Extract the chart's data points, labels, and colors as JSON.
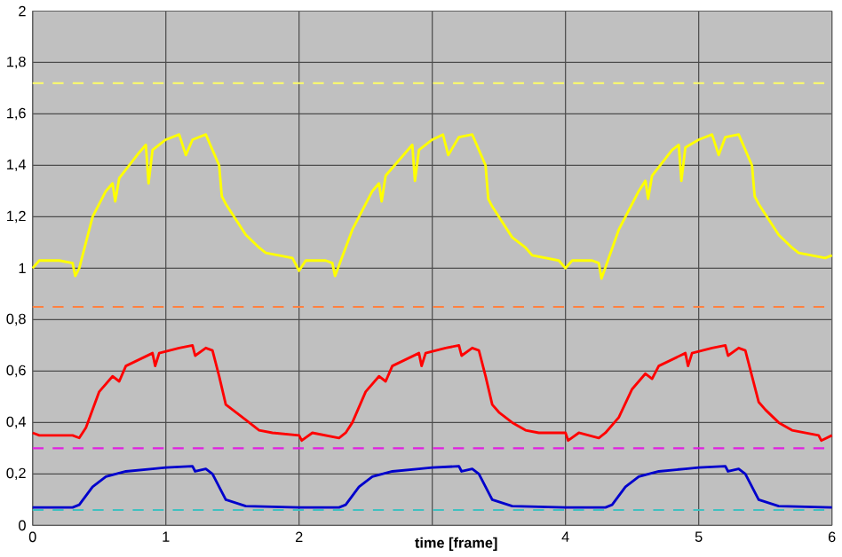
{
  "chart_data": {
    "type": "line",
    "xlabel": "time [frame]",
    "xlim": [
      0,
      6
    ],
    "ylim": [
      0,
      2
    ],
    "xticks": [
      0,
      1,
      2,
      {
        "value": 3,
        "label": null
      },
      4,
      5,
      6
    ],
    "yticks": [
      0,
      {
        "value": 0.2,
        "label": "0,2"
      },
      {
        "value": 0.4,
        "label": "0,4"
      },
      {
        "value": 0.6,
        "label": "0,6"
      },
      {
        "value": 0.8,
        "label": "0,8"
      },
      1,
      {
        "value": 1.2,
        "label": "1,2"
      },
      {
        "value": 1.4,
        "label": "1,4"
      },
      {
        "value": 1.6,
        "label": "1,6"
      },
      {
        "value": 1.8,
        "label": "1,8"
      },
      2
    ],
    "grid": true,
    "marker": "none",
    "line_style": "solid",
    "series": [
      {
        "color": "#ffff00",
        "x": [
          0,
          0.05,
          0.2,
          0.3,
          0.32,
          0.35,
          0.45,
          0.55,
          0.6,
          0.62,
          0.65,
          0.8,
          0.85,
          0.87,
          0.9,
          1.0,
          1.1,
          1.15,
          1.2,
          1.3,
          1.4,
          1.42,
          1.45,
          1.6,
          1.7,
          1.75,
          1.95,
          2.0,
          2.05,
          2.2,
          2.25,
          2.27,
          2.4,
          2.55,
          2.6,
          2.62,
          2.65,
          2.8,
          2.85,
          2.87,
          2.9,
          3.0,
          3.08,
          3.12,
          3.2,
          3.3,
          3.4,
          3.42,
          3.45,
          3.6,
          3.7,
          3.75,
          3.95,
          4.0,
          4.05,
          4.2,
          4.25,
          4.27,
          4.4,
          4.55,
          4.6,
          4.62,
          4.65,
          4.8,
          4.85,
          4.87,
          4.9,
          5.0,
          5.1,
          5.15,
          5.2,
          5.3,
          5.4,
          5.42,
          5.45,
          5.6,
          5.7,
          5.75,
          5.95,
          6.0
        ],
        "values": [
          1.0,
          1.03,
          1.03,
          1.02,
          0.97,
          1.0,
          1.2,
          1.3,
          1.33,
          1.26,
          1.35,
          1.45,
          1.48,
          1.33,
          1.46,
          1.5,
          1.52,
          1.44,
          1.5,
          1.52,
          1.4,
          1.28,
          1.25,
          1.13,
          1.08,
          1.06,
          1.04,
          0.99,
          1.03,
          1.03,
          1.02,
          0.97,
          1.15,
          1.3,
          1.33,
          1.26,
          1.36,
          1.45,
          1.48,
          1.34,
          1.46,
          1.5,
          1.52,
          1.44,
          1.51,
          1.52,
          1.4,
          1.27,
          1.24,
          1.12,
          1.08,
          1.05,
          1.03,
          1.0,
          1.03,
          1.03,
          1.02,
          0.96,
          1.15,
          1.3,
          1.34,
          1.27,
          1.36,
          1.46,
          1.48,
          1.34,
          1.47,
          1.5,
          1.52,
          1.44,
          1.51,
          1.52,
          1.4,
          1.28,
          1.25,
          1.13,
          1.08,
          1.06,
          1.04,
          1.05
        ]
      },
      {
        "color": "#ff0000",
        "x": [
          0,
          0.05,
          0.1,
          0.3,
          0.35,
          0.4,
          0.5,
          0.6,
          0.65,
          0.7,
          0.9,
          0.92,
          0.95,
          1.1,
          1.2,
          1.22,
          1.3,
          1.35,
          1.4,
          1.45,
          1.5,
          1.6,
          1.7,
          1.8,
          2.0,
          2.02,
          2.1,
          2.3,
          2.35,
          2.4,
          2.5,
          2.6,
          2.65,
          2.7,
          2.9,
          2.92,
          2.95,
          3.1,
          3.2,
          3.22,
          3.3,
          3.35,
          3.4,
          3.45,
          3.5,
          3.6,
          3.7,
          3.8,
          4.0,
          4.02,
          4.1,
          4.25,
          4.3,
          4.4,
          4.5,
          4.6,
          4.65,
          4.7,
          4.9,
          4.92,
          4.95,
          5.1,
          5.2,
          5.22,
          5.3,
          5.35,
          5.4,
          5.45,
          5.5,
          5.6,
          5.7,
          5.8,
          5.9,
          5.92,
          6.0
        ],
        "values": [
          0.36,
          0.35,
          0.35,
          0.35,
          0.34,
          0.38,
          0.52,
          0.58,
          0.56,
          0.62,
          0.67,
          0.62,
          0.67,
          0.69,
          0.7,
          0.66,
          0.69,
          0.68,
          0.58,
          0.47,
          0.45,
          0.41,
          0.37,
          0.36,
          0.35,
          0.33,
          0.36,
          0.34,
          0.36,
          0.4,
          0.52,
          0.58,
          0.56,
          0.62,
          0.67,
          0.62,
          0.67,
          0.69,
          0.7,
          0.66,
          0.69,
          0.68,
          0.58,
          0.47,
          0.44,
          0.4,
          0.37,
          0.36,
          0.36,
          0.33,
          0.36,
          0.34,
          0.36,
          0.42,
          0.53,
          0.59,
          0.57,
          0.62,
          0.67,
          0.62,
          0.67,
          0.69,
          0.7,
          0.66,
          0.69,
          0.68,
          0.58,
          0.48,
          0.45,
          0.4,
          0.37,
          0.36,
          0.35,
          0.33,
          0.35
        ]
      },
      {
        "color": "#0000cc",
        "x": [
          0,
          0.1,
          0.3,
          0.35,
          0.45,
          0.55,
          0.7,
          0.9,
          1.0,
          1.2,
          1.22,
          1.3,
          1.35,
          1.45,
          1.6,
          2.0,
          2.3,
          2.35,
          2.45,
          2.55,
          2.7,
          2.9,
          3.0,
          3.2,
          3.22,
          3.3,
          3.35,
          3.45,
          3.6,
          4.0,
          4.3,
          4.35,
          4.45,
          4.55,
          4.7,
          4.9,
          5.0,
          5.2,
          5.22,
          5.3,
          5.35,
          5.45,
          5.6,
          6.0
        ],
        "values": [
          0.07,
          0.07,
          0.07,
          0.08,
          0.15,
          0.19,
          0.21,
          0.22,
          0.225,
          0.23,
          0.21,
          0.22,
          0.2,
          0.1,
          0.075,
          0.07,
          0.07,
          0.08,
          0.15,
          0.19,
          0.21,
          0.22,
          0.225,
          0.23,
          0.21,
          0.22,
          0.2,
          0.1,
          0.075,
          0.07,
          0.07,
          0.08,
          0.15,
          0.19,
          0.21,
          0.22,
          0.225,
          0.23,
          0.21,
          0.22,
          0.2,
          0.1,
          0.075,
          0.07
        ]
      }
    ],
    "ref_lines": [
      {
        "axis": "y",
        "value": 1.72,
        "color": "#ffff66",
        "line_style": "dashed"
      },
      {
        "axis": "y",
        "value": 0.85,
        "color": "#ff8040",
        "line_style": "dashed"
      },
      {
        "axis": "y",
        "value": 0.3,
        "color": "#e020e0",
        "line_style": "dashed"
      },
      {
        "axis": "y",
        "value": 0.06,
        "color": "#40c0c0",
        "line_style": "dashed"
      }
    ]
  }
}
